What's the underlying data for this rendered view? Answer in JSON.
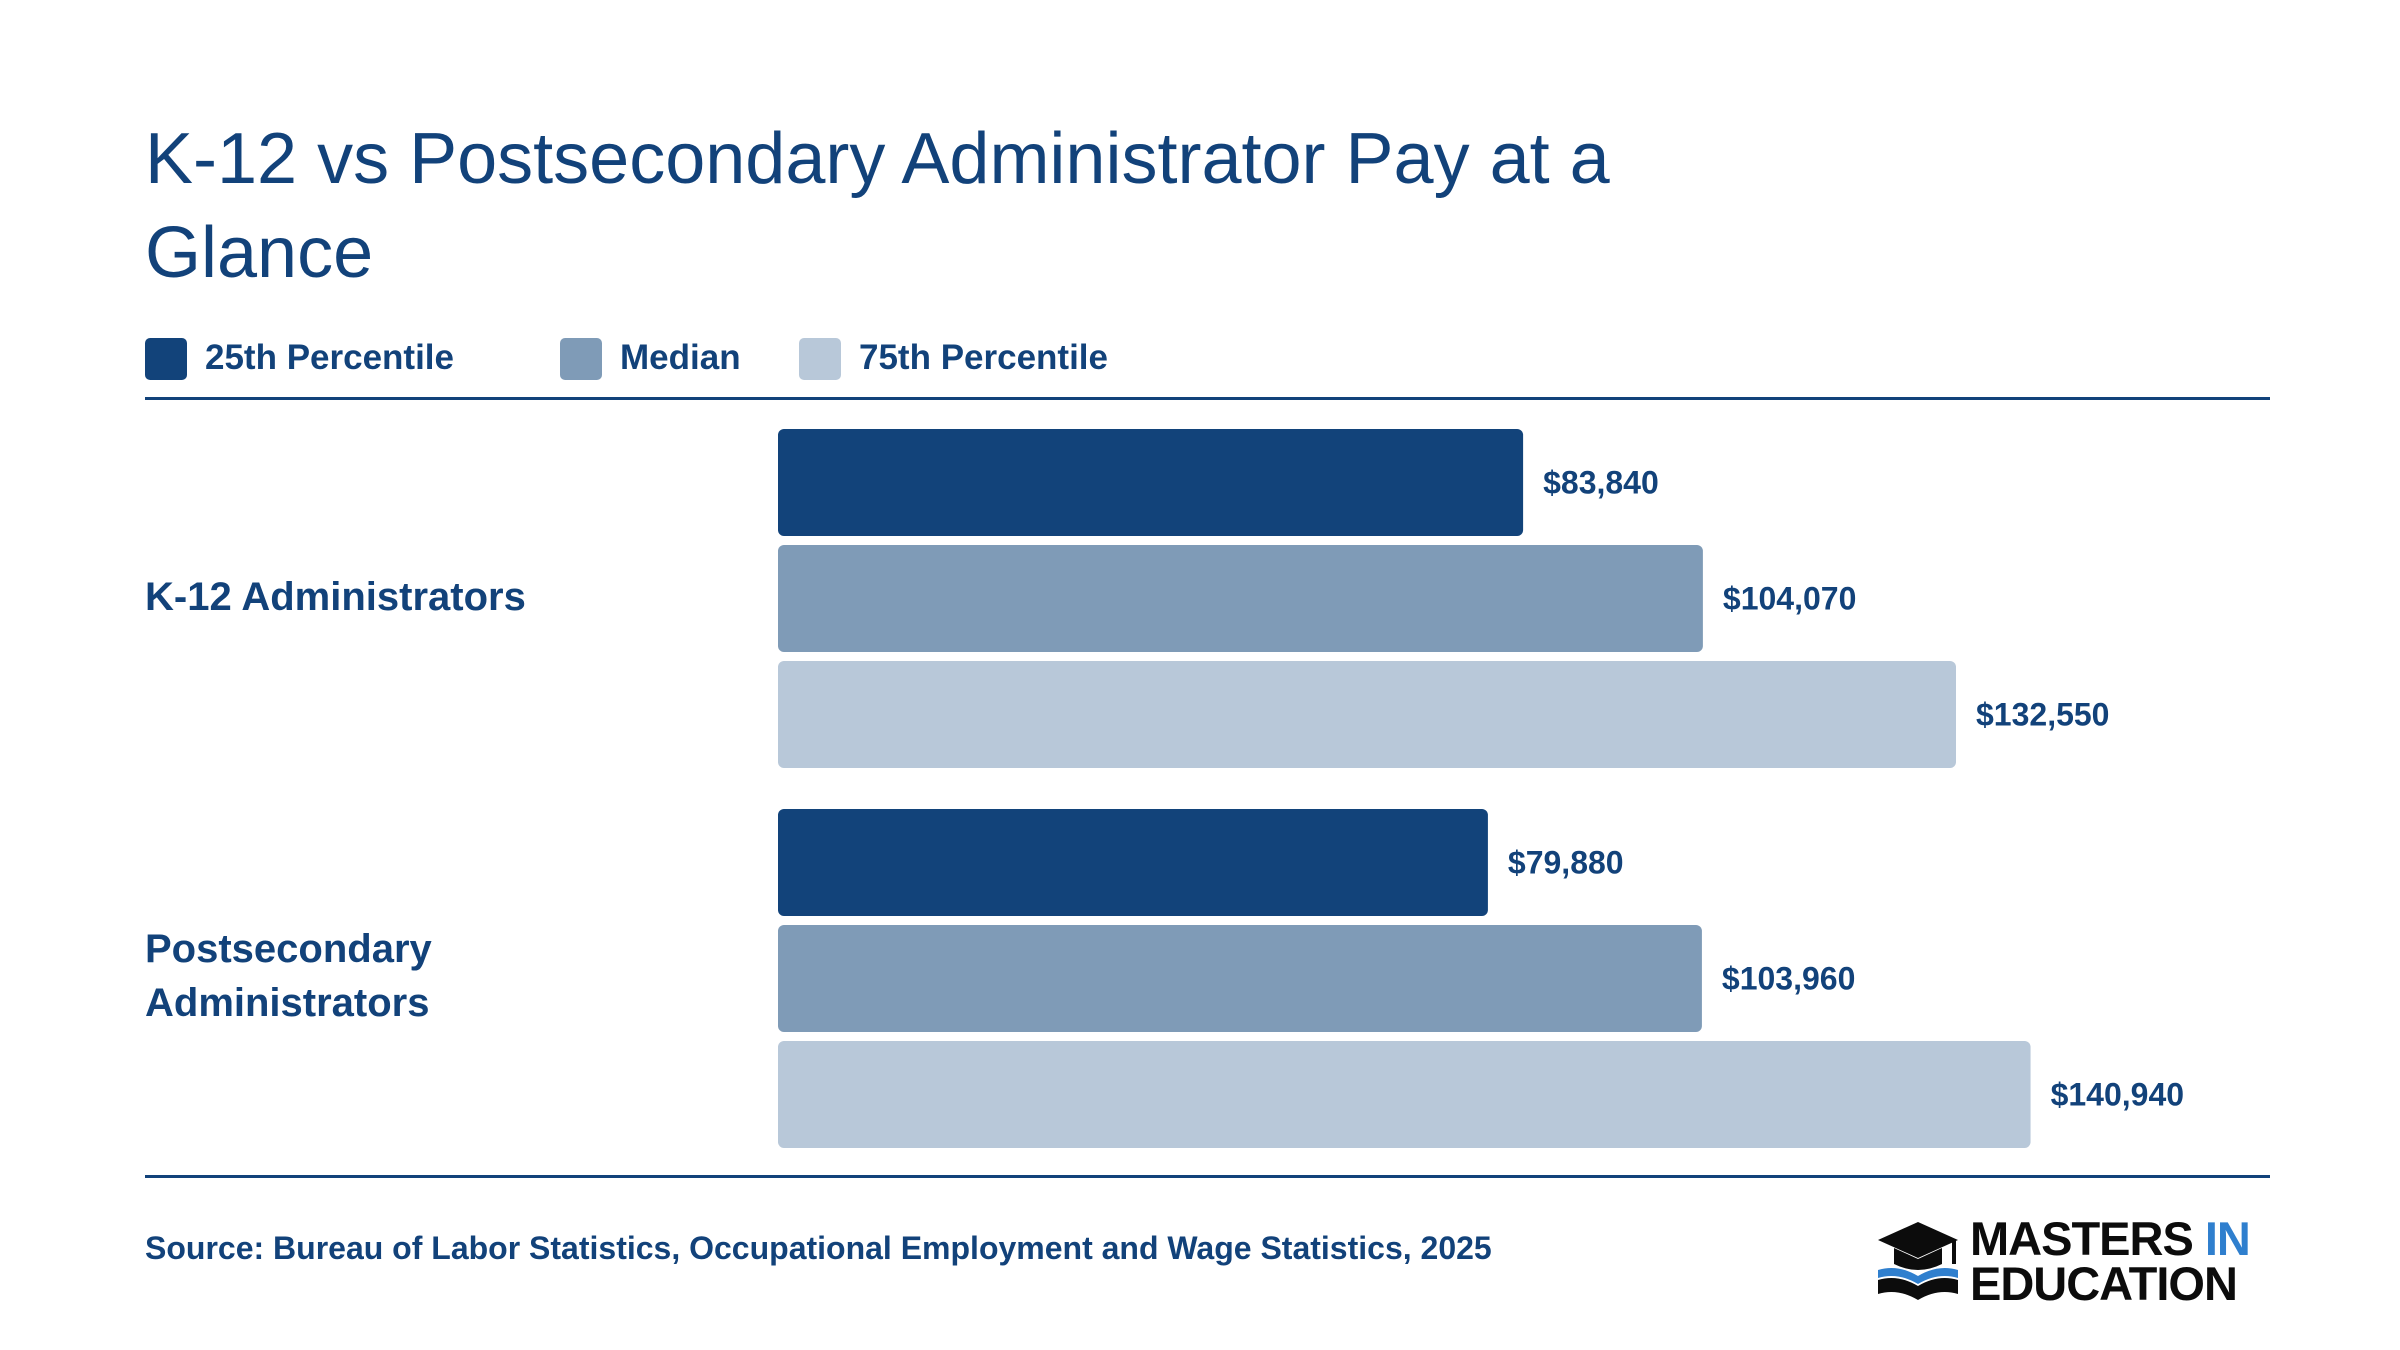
{
  "title": "K-12 vs Postsecondary Administrator Pay at a Glance",
  "legend": [
    {
      "label": "25th Percentile",
      "color": "#12437a"
    },
    {
      "label": "Median",
      "color": "#7f9bb7"
    },
    {
      "label": "75th Percentile",
      "color": "#b8c8d9"
    }
  ],
  "chart_data": {
    "type": "bar",
    "orientation": "horizontal",
    "title": "K-12 vs Postsecondary Administrator Pay at a Glance",
    "categories": [
      "K-12 Administrators",
      "Postsecondary Administrators"
    ],
    "series": [
      {
        "name": "25th Percentile",
        "values": [
          83840,
          79880
        ],
        "labels": [
          "$83,840",
          "$79,880"
        ],
        "color": "#12437a"
      },
      {
        "name": "Median",
        "values": [
          104070,
          103960
        ],
        "labels": [
          "$104,070",
          "$103,960"
        ],
        "color": "#7f9bb7"
      },
      {
        "name": "75th Percentile",
        "values": [
          132550,
          140940
        ],
        "labels": [
          "$132,550",
          "$140,940"
        ],
        "color": "#b8c8d9"
      }
    ],
    "xlim": [
      0,
      160000
    ],
    "grid": false,
    "legend_position": "top-left"
  },
  "source": "Source: Bureau of Labor Statistics, Occupational Employment and Wage Statistics, 2025",
  "logo": {
    "line1": "MASTERS",
    "line1_accent": "IN",
    "line2": "EDUCATION",
    "icon": "graduation-cap-book-icon"
  }
}
